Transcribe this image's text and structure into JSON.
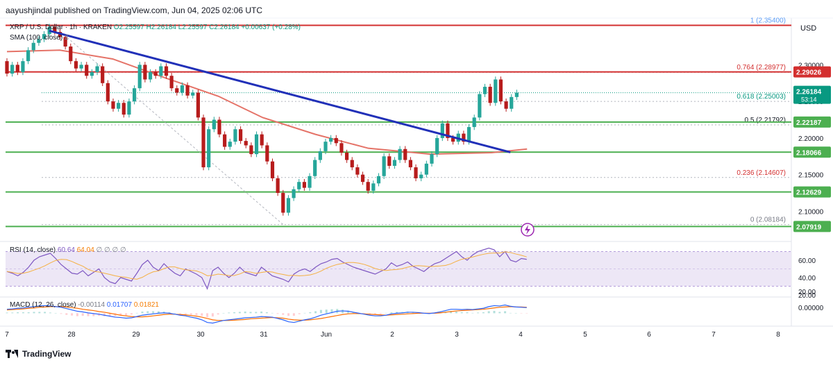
{
  "header": {
    "publisher": "aayushjindal published on TradingView.com, Jun 04, 2025 02:06 UTC"
  },
  "legend": {
    "symbol": "XRP / U.S. Dollar · 1h · KRAKEN",
    "ohlc": "O2.25597 H2.26184 L2.25597 C2.26184 +0.00637 (+0.28%)",
    "sma_label": "SMA (100, close)",
    "sma_extra": "2",
    "rsi_label": "RSI (14, close)",
    "rsi_value": "60.64",
    "rsi_value2": "64.04",
    "rsi_zeros": "∅ ∅ ∅ ∅",
    "macd_label": "MACD (12, 26, close)",
    "macd_hist": "-0.00114",
    "macd_value": "0.01707",
    "macd_signal": "0.01821"
  },
  "currency": "USD",
  "footer": {
    "brand": "TradingView"
  },
  "colors": {
    "up": "#089981",
    "down": "#b71c1c",
    "fib_red": "#d32f2f",
    "support_green": "#4caf50",
    "trendline": "#2130b8",
    "sma": "#e57368",
    "rsi_line": "#7e57c2",
    "rsi_band": "#ede7f6",
    "macd_line": "#2962ff",
    "signal_line": "#ff6d00"
  },
  "chart_data": {
    "type": "candlestick",
    "timeframe": "1h",
    "x_ticks": [
      "7",
      "28",
      "29",
      "30",
      "31",
      "Jun",
      "2",
      "3",
      "4",
      "5",
      "6",
      "7",
      "8"
    ],
    "y_ticks": [
      "2.30000",
      "2.25000",
      "2.20000",
      "2.15000",
      "2.10000"
    ],
    "y_range": [
      2.071,
      2.362
    ],
    "horizontal_levels": [
      {
        "label": "1 (2.35400)",
        "value": 2.354,
        "type": "fib"
      },
      {
        "label": "0.764 (2.28977)",
        "value": 2.28977,
        "type": "fib"
      },
      {
        "label": "0.618 (2.25003)",
        "value": 2.25003,
        "type": "fib"
      },
      {
        "label": "0.5 (2.21792)",
        "value": 2.21792,
        "type": "fib"
      },
      {
        "label": "0.236 (2.14607)",
        "value": 2.14607,
        "type": "fib"
      },
      {
        "label": "0 (2.08184)",
        "value": 2.08184,
        "type": "fib"
      }
    ],
    "support_resistance": [
      {
        "label": "2.29026",
        "value": 2.29026,
        "color": "red"
      },
      {
        "label": "2.22187",
        "value": 2.22187,
        "color": "green"
      },
      {
        "label": "2.18066",
        "value": 2.18066,
        "color": "green"
      },
      {
        "label": "2.12629",
        "value": 2.12629,
        "color": "green"
      },
      {
        "label": "2.07919",
        "value": 2.07919,
        "color": "green"
      }
    ],
    "current_price": {
      "label": "2.26184",
      "countdown": "53:14",
      "value": 2.26184
    },
    "top_line": {
      "value": 2.354
    },
    "trendline": {
      "from": [
        0.4,
        2.3465
      ],
      "to": [
        76.5,
        2.1805
      ]
    },
    "candles": [
      [
        2.305,
        2.288
      ],
      [
        2.288,
        2.3
      ],
      [
        2.3,
        2.29
      ],
      [
        2.29,
        2.305
      ],
      [
        2.305,
        2.32
      ],
      [
        2.32,
        2.33
      ],
      [
        2.33,
        2.335
      ],
      [
        2.335,
        2.342
      ],
      [
        2.342,
        2.352
      ],
      [
        2.352,
        2.345
      ],
      [
        2.345,
        2.338
      ],
      [
        2.338,
        2.325
      ],
      [
        2.325,
        2.305
      ],
      [
        2.305,
        2.295
      ],
      [
        2.295,
        2.3
      ],
      [
        2.3,
        2.285
      ],
      [
        2.285,
        2.29
      ],
      [
        2.29,
        2.298
      ],
      [
        2.298,
        2.275
      ],
      [
        2.275,
        2.25
      ],
      [
        2.25,
        2.24
      ],
      [
        2.24,
        2.248
      ],
      [
        2.248,
        2.232
      ],
      [
        2.232,
        2.25
      ],
      [
        2.25,
        2.268
      ],
      [
        2.268,
        2.3
      ],
      [
        2.3,
        2.28
      ],
      [
        2.28,
        2.29
      ],
      [
        2.29,
        2.285
      ],
      [
        2.285,
        2.298
      ],
      [
        2.298,
        2.285
      ],
      [
        2.285,
        2.268
      ],
      [
        2.268,
        2.262
      ],
      [
        2.262,
        2.272
      ],
      [
        2.272,
        2.258
      ],
      [
        2.258,
        2.262
      ],
      [
        2.262,
        2.228
      ],
      [
        2.228,
        2.16
      ],
      [
        2.16,
        2.212
      ],
      [
        2.212,
        2.225
      ],
      [
        2.225,
        2.205
      ],
      [
        2.205,
        2.188
      ],
      [
        2.188,
        2.195
      ],
      [
        2.195,
        2.212
      ],
      [
        2.212,
        2.196
      ],
      [
        2.196,
        2.19
      ],
      [
        2.19,
        2.178
      ],
      [
        2.178,
        2.205
      ],
      [
        2.205,
        2.19
      ],
      [
        2.19,
        2.168
      ],
      [
        2.168,
        2.145
      ],
      [
        2.145,
        2.125
      ],
      [
        2.125,
        2.098
      ],
      [
        2.098,
        2.118
      ],
      [
        2.118,
        2.13
      ],
      [
        2.13,
        2.14
      ],
      [
        2.14,
        2.132
      ],
      [
        2.132,
        2.148
      ],
      [
        2.148,
        2.17
      ],
      [
        2.17,
        2.182
      ],
      [
        2.182,
        2.195
      ],
      [
        2.195,
        2.2
      ],
      [
        2.2,
        2.193
      ],
      [
        2.193,
        2.18
      ],
      [
        2.18,
        2.17
      ],
      [
        2.17,
        2.16
      ],
      [
        2.16,
        2.15
      ],
      [
        2.15,
        2.14
      ],
      [
        2.14,
        2.128
      ],
      [
        2.128,
        2.138
      ],
      [
        2.138,
        2.148
      ],
      [
        2.148,
        2.175
      ],
      [
        2.175,
        2.162
      ],
      [
        2.162,
        2.17
      ],
      [
        2.17,
        2.185
      ],
      [
        2.185,
        2.17
      ],
      [
        2.17,
        2.16
      ],
      [
        2.16,
        2.145
      ],
      [
        2.145,
        2.15
      ],
      [
        2.15,
        2.165
      ],
      [
        2.165,
        2.178
      ],
      [
        2.178,
        2.2
      ],
      [
        2.2,
        2.22
      ],
      [
        2.22,
        2.2
      ],
      [
        2.2,
        2.195
      ],
      [
        2.195,
        2.206
      ],
      [
        2.206,
        2.195
      ],
      [
        2.195,
        2.215
      ],
      [
        2.215,
        2.228
      ],
      [
        2.228,
        2.26
      ],
      [
        2.26,
        2.27
      ],
      [
        2.27,
        2.248
      ],
      [
        2.248,
        2.28
      ],
      [
        2.28,
        2.25
      ],
      [
        2.25,
        2.24
      ],
      [
        2.24,
        2.256
      ],
      [
        2.256,
        2.262
      ]
    ],
    "sma_line": [
      [
        0,
        2.318
      ],
      [
        12,
        2.32
      ],
      [
        24,
        2.308
      ],
      [
        36,
        2.282
      ],
      [
        48,
        2.257
      ],
      [
        58,
        2.228
      ],
      [
        70,
        2.205
      ],
      [
        82,
        2.186
      ],
      [
        96,
        2.178
      ],
      [
        110,
        2.18
      ],
      [
        118,
        2.185
      ]
    ],
    "rsi": {
      "range": [
        20,
        80
      ],
      "ticks": [
        "60.00",
        "40.00",
        "20.00"
      ],
      "band": [
        30,
        70
      ],
      "values": [
        47,
        45,
        42,
        46,
        52,
        60,
        64,
        66,
        68,
        62,
        55,
        50,
        45,
        44,
        48,
        42,
        46,
        50,
        40,
        35,
        33,
        40,
        38,
        36,
        45,
        55,
        60,
        52,
        48,
        56,
        50,
        45,
        42,
        50,
        47,
        44,
        40,
        27,
        48,
        52,
        45,
        40,
        45,
        52,
        46,
        44,
        42,
        52,
        47,
        42,
        40,
        38,
        35,
        44,
        48,
        50,
        47,
        52,
        56,
        58,
        61,
        62,
        58,
        55,
        52,
        50,
        48,
        46,
        44,
        47,
        50,
        57,
        53,
        55,
        58,
        53,
        50,
        47,
        52,
        56,
        58,
        62,
        66,
        70,
        64,
        60,
        66,
        70,
        72,
        74,
        72,
        64,
        70,
        60,
        58,
        62,
        61
      ]
    },
    "macd": {
      "range": [
        -0.035,
        0.045
      ],
      "ticks": [
        "20.00",
        "0.00000"
      ],
      "macd": [
        0.012,
        0.013,
        0.015,
        0.016,
        0.018,
        0.02,
        0.022,
        0.023,
        0.022,
        0.02,
        0.018,
        0.014,
        0.01,
        0.006,
        0.004,
        0.001,
        -0.001,
        -0.003,
        -0.006,
        -0.009,
        -0.012,
        -0.013,
        -0.015,
        -0.014,
        -0.01,
        -0.006,
        -0.004,
        -0.002,
        0.0,
        0.001,
        0.0,
        -0.003,
        -0.006,
        -0.008,
        -0.012,
        -0.015,
        -0.02,
        -0.028,
        -0.03,
        -0.026,
        -0.022,
        -0.02,
        -0.018,
        -0.016,
        -0.014,
        -0.013,
        -0.012,
        -0.01,
        -0.011,
        -0.012,
        -0.016,
        -0.02,
        -0.026,
        -0.028,
        -0.024,
        -0.02,
        -0.017,
        -0.012,
        -0.006,
        -0.002,
        0.002,
        0.006,
        0.007,
        0.006,
        0.003,
        0.0,
        -0.003,
        -0.006,
        -0.008,
        -0.008,
        -0.006,
        -0.002,
        0.0,
        0.001,
        0.003,
        0.003,
        0.002,
        0.0,
        -0.001,
        0.001,
        0.004,
        0.008,
        0.012,
        0.012,
        0.011,
        0.012,
        0.011,
        0.013,
        0.015,
        0.02,
        0.023,
        0.022,
        0.025,
        0.021,
        0.019,
        0.018,
        0.017
      ],
      "signal": [
        0.01,
        0.011,
        0.012,
        0.013,
        0.015,
        0.016,
        0.018,
        0.019,
        0.02,
        0.02,
        0.02,
        0.019,
        0.017,
        0.015,
        0.012,
        0.01,
        0.008,
        0.005,
        0.003,
        0.0,
        -0.003,
        -0.006,
        -0.008,
        -0.01,
        -0.011,
        -0.011,
        -0.01,
        -0.008,
        -0.006,
        -0.004,
        -0.003,
        -0.003,
        -0.004,
        -0.005,
        -0.007,
        -0.009,
        -0.012,
        -0.016,
        -0.02,
        -0.022,
        -0.022,
        -0.022,
        -0.021,
        -0.02,
        -0.019,
        -0.017,
        -0.016,
        -0.015,
        -0.014,
        -0.013,
        -0.014,
        -0.015,
        -0.018,
        -0.02,
        -0.021,
        -0.021,
        -0.02,
        -0.018,
        -0.016,
        -0.013,
        -0.01,
        -0.007,
        -0.004,
        -0.002,
        -0.001,
        -0.001,
        -0.002,
        -0.003,
        -0.004,
        -0.005,
        -0.006,
        -0.005,
        -0.004,
        -0.003,
        -0.002,
        -0.001,
        0.0,
        0.0,
        0.0,
        0.0,
        0.001,
        0.003,
        0.005,
        0.007,
        0.008,
        0.009,
        0.01,
        0.011,
        0.012,
        0.014,
        0.016,
        0.018,
        0.019,
        0.02,
        0.019,
        0.019,
        0.018
      ]
    }
  }
}
